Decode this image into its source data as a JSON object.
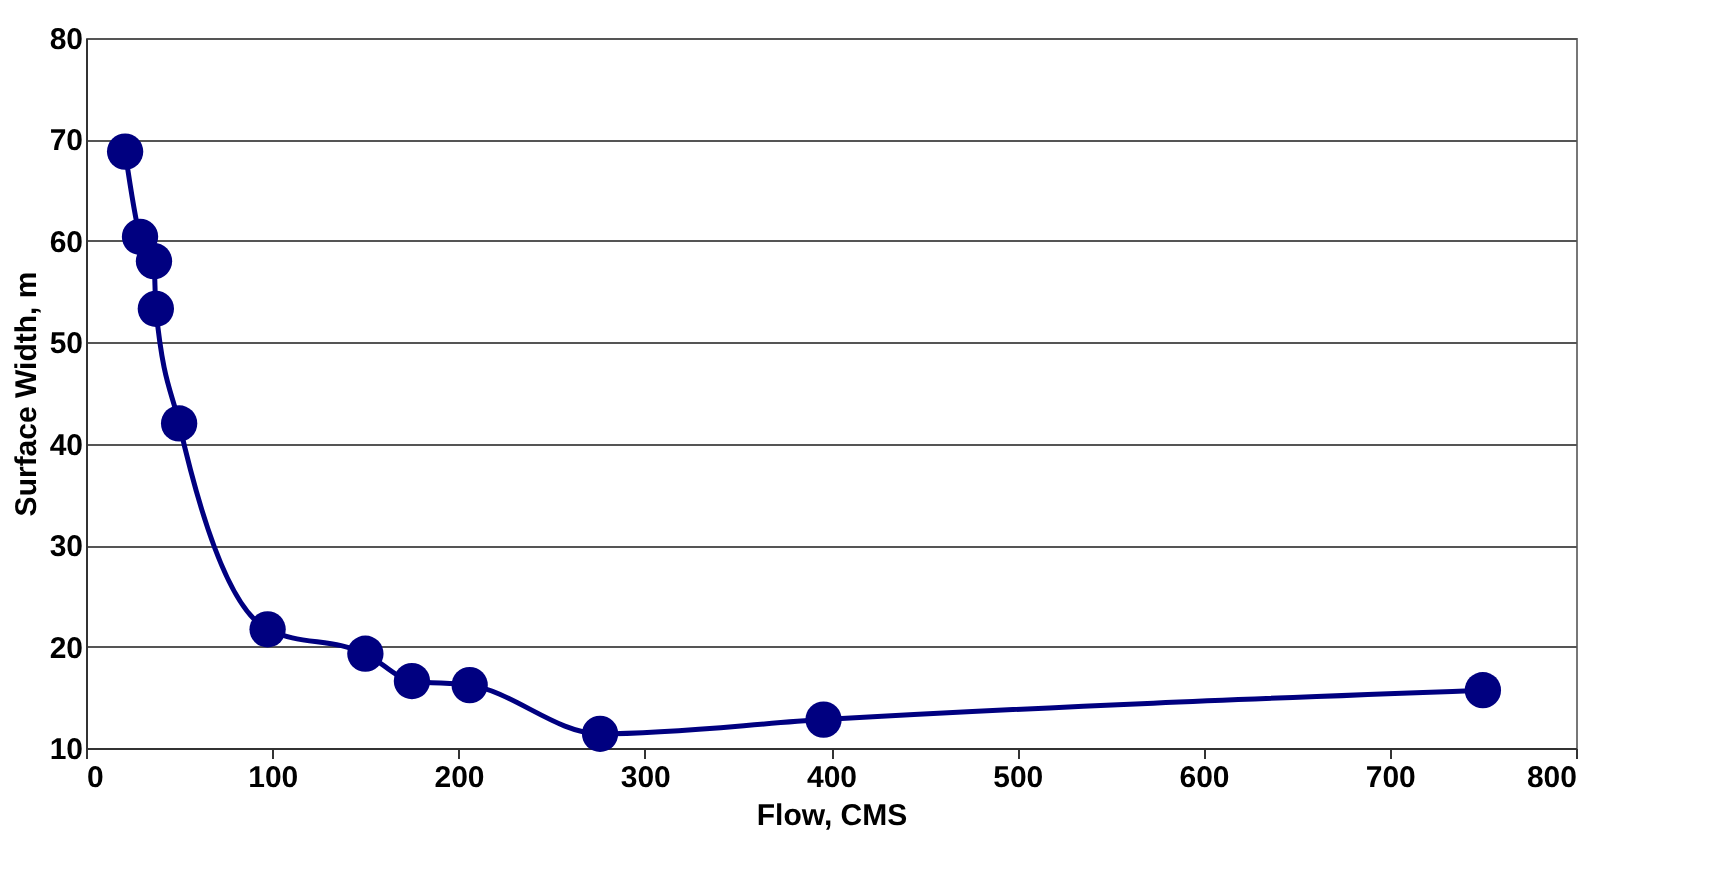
{
  "chart_data": {
    "type": "line",
    "xlabel": "Flow,  CMS",
    "ylabel": "Surface Width, m",
    "x": [
      21,
      29,
      36.5,
      37.5,
      50,
      97.5,
      150,
      175,
      206,
      276,
      396,
      750
    ],
    "series": [
      {
        "color": "#000080",
        "values": [
          68.8,
          60.4,
          58,
          53.3,
          42,
          21.7,
          19.3,
          16.6,
          16.2,
          11.4,
          12.8,
          15.7
        ]
      }
    ],
    "xlim": [
      0,
      800
    ],
    "xticks": [
      0,
      100,
      200,
      300,
      400,
      500,
      600,
      700,
      800
    ],
    "ylim": [
      10,
      80
    ],
    "yticks": [
      10,
      20,
      30,
      40,
      50,
      60,
      70,
      80
    ],
    "grid": "y",
    "marker": "circle",
    "line_style": "solid"
  }
}
